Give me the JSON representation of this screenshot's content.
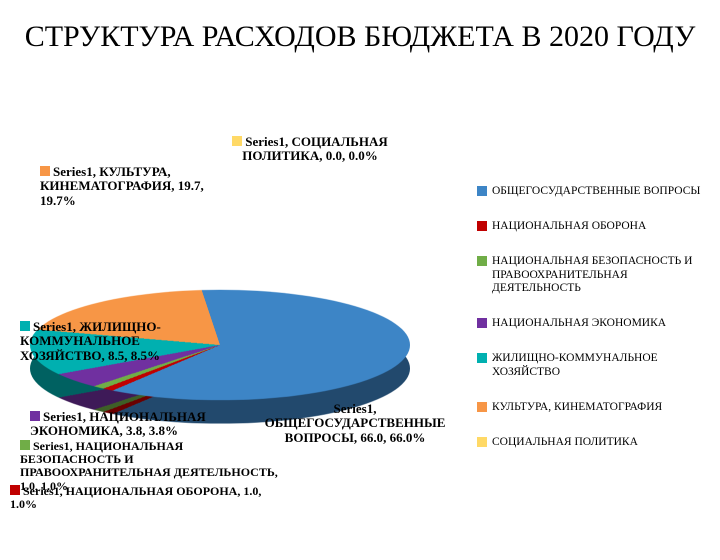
{
  "title": "СТРУКТУРА РАСХОДОВ БЮДЖЕТА В 2020 ГОДУ",
  "chart": {
    "type": "pie",
    "start_angle_deg": -80,
    "background_color": "#ffffff",
    "series_name": "Series1",
    "slices": [
      {
        "key": "culture",
        "label": "КУЛЬТУРА, КИНЕМАТОГРАФИЯ",
        "value": 19.7,
        "pct": "19.7%",
        "color": "#f79646"
      },
      {
        "key": "social",
        "label": "СОЦИАЛЬНАЯ ПОЛИТИКА",
        "value": 0.0,
        "pct": "0.0%",
        "color": "#ffd966"
      },
      {
        "key": "general",
        "label": "ОБЩЕГОСУДАРСТВЕННЫЕ ВОПРОСЫ",
        "value": 66.0,
        "pct": "66.0%",
        "color": "#3d85c6"
      },
      {
        "key": "defense",
        "label": "НАЦИОНАЛЬНАЯ ОБОРОНА",
        "value": 1.0,
        "pct": "1.0%",
        "color": "#c00000"
      },
      {
        "key": "security",
        "label": "НАЦИОНАЛЬНАЯ БЕЗОПАСНОСТЬ И ПРАВООХРАНИТЕЛЬНАЯ ДЕЯТЕЛЬНОСТЬ",
        "value": 1.0,
        "pct": "1.0%",
        "color": "#70ad47"
      },
      {
        "key": "economy",
        "label": "НАЦИОНАЛЬНАЯ ЭКОНОМИКА",
        "value": 3.8,
        "pct": "3.8%",
        "color": "#7030a0"
      },
      {
        "key": "housing",
        "label": "ЖИЛИЩНО-КОММУНАЛЬНОЕ ХОЗЯЙСТВО",
        "value": 8.5,
        "pct": "8.5%",
        "color": "#00b0b0"
      }
    ],
    "legend_order": [
      "general",
      "defense",
      "security",
      "economy",
      "housing",
      "culture",
      "social"
    ],
    "label_fontsize": 13,
    "label_fontweight": "bold",
    "legend_fontsize": 11.5
  },
  "data_labels": {
    "culture": "Series1, КУЛЬТУРА, КИНЕМАТОГРАФИЯ, 19.7, 19.7%",
    "social": "Series1, СОЦИАЛЬНАЯ ПОЛИТИКА, 0.0, 0.0%",
    "housing": "Series1, ЖИЛИЩНО-КОММУНАЛЬНОЕ ХОЗЯЙСТВО, 8.5, 8.5%",
    "economy": "Series1, НАЦИОНАЛЬНАЯ ЭКОНОМИКА, 3.8, 3.8%",
    "security": "Series1, НАЦИОНАЛЬНАЯ БЕЗОПАСНОСТЬ И ПРАВООХРАНИТЕЛЬНАЯ ДЕЯТЕЛЬНОСТЬ, 1.0, 1.0%",
    "defense": "Series1, НАЦИОНАЛЬНАЯ ОБОРОНА, 1.0, 1.0%",
    "general": "Series1, ОБЩЕГОСУДАРСТВЕННЫЕ ВОПРОСЫ, 66.0, 66.0%"
  }
}
